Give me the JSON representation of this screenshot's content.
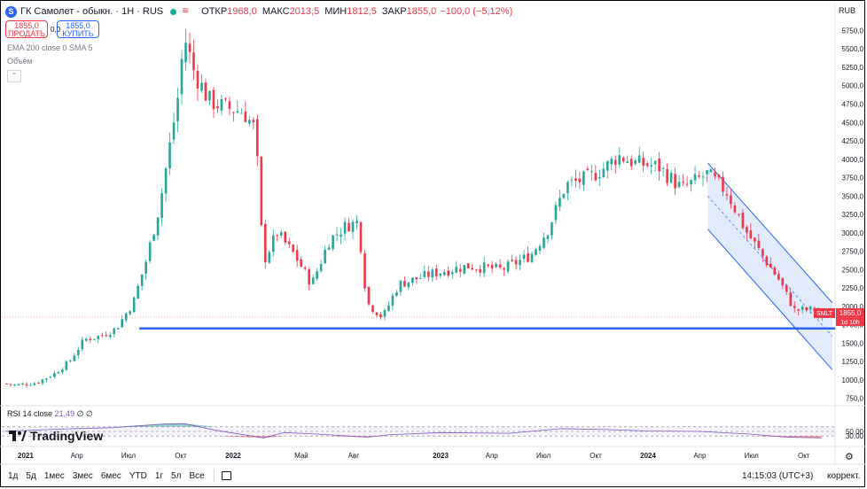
{
  "header": {
    "logo_letter": "S",
    "title": "ГК Самолет - обыкн. · 1Н · RUS",
    "ohlc": {
      "open_label": "ОТКР",
      "open": "1968,0",
      "high_label": "МАКС",
      "high": "2013,5",
      "low_label": "МИН",
      "low": "1812,5",
      "close_label": "ЗАКР",
      "close": "1855,0",
      "change": "−100,0 (−5,12%)"
    },
    "currency": "RUB"
  },
  "trade": {
    "sell_price": "1855,0",
    "sell_label": "ПРОДАТЬ",
    "spread": "0,0",
    "buy_price": "1855,0",
    "buy_label": "КУПИТЬ"
  },
  "indicators": {
    "ema_line": "EMA 200 close 0 SMA 5",
    "volume_line": "Объём",
    "rsi_line_prefix": "RSI 14 close",
    "rsi_value": "21,49",
    "rsi_suffix": "∅ ∅"
  },
  "price_tag": {
    "ticker": "SMLT",
    "price": "1855,0",
    "countdown": "1d 10h",
    "color": "#f23645"
  },
  "colors": {
    "up": "#26a69a",
    "down": "#f23645",
    "support_line": "#2962ff",
    "channel_fill": "#dbe6fb",
    "rsi_line": "#7e57c2"
  },
  "brand": "TradingView",
  "toolbar": {
    "timeframes": [
      "1д",
      "5д",
      "1мес",
      "3мес",
      "6мес",
      "YTD",
      "1г",
      "5л",
      "Все"
    ],
    "clock": "14:15:03 (UTC+3)",
    "correction": "коррект."
  },
  "chart_data": [
    {
      "type": "candlestick",
      "title": "ГК Самолет - обыкн.",
      "interval": "1W",
      "currency": "RUB",
      "ylim": [
        650,
        5900
      ],
      "y_ticks": [
        "5750,0",
        "5500,0",
        "5250,0",
        "5000,0",
        "4750,0",
        "4500,0",
        "4250,0",
        "4000,0",
        "3750,0",
        "3500,0",
        "3250,0",
        "3000,0",
        "2750,0",
        "2500,0",
        "2250,0",
        "2000,0",
        "1750,0",
        "1500,0",
        "1250,0",
        "1000,0",
        "750,0"
      ],
      "x_ticks": [
        "2021",
        "Апр",
        "Июл",
        "Окт",
        "2022",
        "Май",
        "Авг",
        "2023",
        "Апр",
        "Июл",
        "Окт",
        "2024",
        "Апр",
        "Июл",
        "Окт"
      ],
      "x_tick_dates": [
        "2021-01-01",
        "2021-04-01",
        "2021-07-01",
        "2021-10-01",
        "2022-01-01",
        "2022-05-01",
        "2022-08-01",
        "2023-01-01",
        "2023-04-01",
        "2023-07-01",
        "2023-10-01",
        "2024-01-01",
        "2024-04-01",
        "2024-07-01",
        "2024-10-01"
      ],
      "xlim": [
        "2020-11-20",
        "2024-11-25"
      ],
      "approx_close_path": [
        [
          "2020-11-26",
          950
        ],
        [
          "2020-12-15",
          930
        ],
        [
          "2021-01-20",
          960
        ],
        [
          "2021-02-20",
          1080
        ],
        [
          "2021-03-20",
          1250
        ],
        [
          "2021-04-15",
          1550
        ],
        [
          "2021-05-15",
          1600
        ],
        [
          "2021-06-10",
          1700
        ],
        [
          "2021-07-10",
          2050
        ],
        [
          "2021-08-01",
          2600
        ],
        [
          "2021-08-25",
          3350
        ],
        [
          "2021-09-15",
          4300
        ],
        [
          "2021-09-30",
          5000
        ],
        [
          "2021-10-07",
          5700
        ],
        [
          "2021-10-25",
          5200
        ],
        [
          "2021-11-20",
          4800
        ],
        [
          "2021-12-20",
          4700
        ],
        [
          "2022-01-20",
          4650
        ],
        [
          "2022-02-10",
          4400
        ],
        [
          "2022-02-24",
          2600
        ],
        [
          "2022-03-20",
          3000
        ],
        [
          "2022-04-20",
          2700
        ],
        [
          "2022-05-20",
          2300
        ],
        [
          "2022-06-20",
          2900
        ],
        [
          "2022-07-20",
          3100
        ],
        [
          "2022-08-10",
          3150
        ],
        [
          "2022-08-25",
          2050
        ],
        [
          "2022-09-22",
          1850
        ],
        [
          "2022-10-20",
          2300
        ],
        [
          "2022-12-20",
          2450
        ],
        [
          "2023-02-20",
          2550
        ],
        [
          "2023-04-20",
          2500
        ],
        [
          "2023-06-10",
          2700
        ],
        [
          "2023-07-10",
          3050
        ],
        [
          "2023-08-10",
          3650
        ],
        [
          "2023-09-20",
          3750
        ],
        [
          "2023-10-20",
          3900
        ],
        [
          "2023-11-10",
          4050
        ],
        [
          "2023-12-10",
          3950
        ],
        [
          "2024-01-20",
          3900
        ],
        [
          "2024-03-01",
          3600
        ],
        [
          "2024-04-15",
          3800
        ],
        [
          "2024-05-20",
          3550
        ],
        [
          "2024-06-20",
          3050
        ],
        [
          "2024-07-20",
          2700
        ],
        [
          "2024-08-20",
          2350
        ],
        [
          "2024-09-15",
          1950
        ],
        [
          "2024-10-20",
          1955
        ],
        [
          "2024-11-01",
          1855
        ]
      ],
      "last_close": 1855.0,
      "annotations": [
        {
          "type": "horizontal_ray",
          "price": 1700,
          "from": "2021-07-20",
          "color": "#2962ff"
        },
        {
          "type": "descending_channel",
          "from": "2024-04-15",
          "to": "2024-11-20",
          "upper": [
            3950,
            2050
          ],
          "lower": [
            3050,
            1140
          ]
        }
      ]
    },
    {
      "type": "line",
      "title": "RSI 14 close",
      "ylim": [
        0,
        100
      ],
      "y_ticks": [
        "50,00",
        "30,00"
      ],
      "last_value": 21.49,
      "approx_path": [
        [
          "2020-11-26",
          50
        ],
        [
          "2021-03-01",
          60
        ],
        [
          "2021-06-01",
          66
        ],
        [
          "2021-09-01",
          82
        ],
        [
          "2021-10-07",
          84
        ],
        [
          "2021-12-01",
          55
        ],
        [
          "2022-02-24",
          22
        ],
        [
          "2022-04-01",
          45
        ],
        [
          "2022-06-01",
          38
        ],
        [
          "2022-08-25",
          25
        ],
        [
          "2022-10-01",
          35
        ],
        [
          "2023-01-01",
          45
        ],
        [
          "2023-05-01",
          42
        ],
        [
          "2023-08-01",
          62
        ],
        [
          "2023-10-20",
          58
        ],
        [
          "2024-01-01",
          52
        ],
        [
          "2024-04-01",
          50
        ],
        [
          "2024-07-01",
          38
        ],
        [
          "2024-09-01",
          25
        ],
        [
          "2024-11-01",
          21.49
        ]
      ],
      "overbought_fill": "#26a69a",
      "oversold_fill": "#f23645"
    }
  ]
}
